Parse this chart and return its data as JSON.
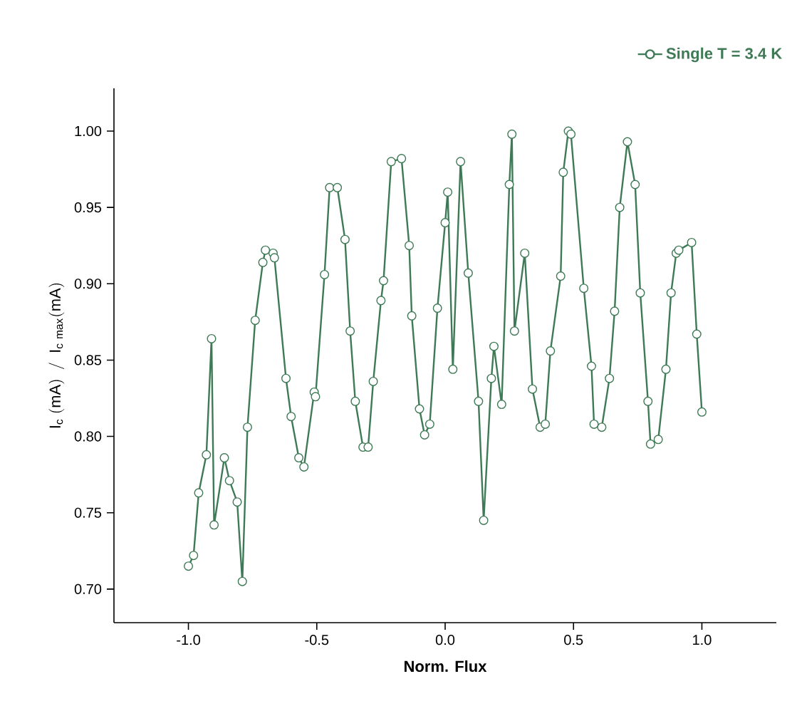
{
  "chart_data": {
    "type": "line",
    "xlabel": "Norm. Flux",
    "ylabel": "\\mathrm{I_{c}\\ (mA)\\ \\ /\\ \\ I_{c\\ max}(mA)}",
    "xlim": [
      -1.29,
      1.29
    ],
    "ylim": [
      0.678,
      1.028
    ],
    "xticks": [
      {
        "value": -1.0,
        "label": "-1.0"
      },
      {
        "value": -0.5,
        "label": "-0.5"
      },
      {
        "value": 0.0,
        "label": "0.0"
      },
      {
        "value": 0.5,
        "label": "0.5"
      },
      {
        "value": 1.0,
        "label": "1.0"
      }
    ],
    "yticks": [
      {
        "value": 0.7,
        "label": "0.70"
      },
      {
        "value": 0.75,
        "label": "0.75"
      },
      {
        "value": 0.8,
        "label": "0.80"
      },
      {
        "value": 0.85,
        "label": "0.85"
      },
      {
        "value": 0.9,
        "label": "0.90"
      },
      {
        "value": 0.95,
        "label": "0.95"
      },
      {
        "value": 1.0,
        "label": "1.00"
      }
    ],
    "legend": "top right",
    "marker": "circle",
    "grid": false,
    "series": [
      {
        "name": "Single T = 3.4 K",
        "color": "#3f7a56",
        "x": [
          -1.0,
          -0.98,
          -0.96,
          -0.93,
          -0.91,
          -0.9,
          -0.86,
          -0.84,
          -0.81,
          -0.79,
          -0.77,
          -0.74,
          -0.71,
          -0.7,
          -0.67,
          -0.665,
          -0.62,
          -0.6,
          -0.57,
          -0.55,
          -0.51,
          -0.505,
          -0.47,
          -0.45,
          -0.42,
          -0.39,
          -0.37,
          -0.35,
          -0.32,
          -0.3,
          -0.28,
          -0.25,
          -0.24,
          -0.21,
          -0.17,
          -0.14,
          -0.13,
          -0.1,
          -0.08,
          -0.06,
          -0.03,
          0.0,
          0.01,
          0.03,
          0.06,
          0.09,
          0.13,
          0.15,
          0.18,
          0.19,
          0.22,
          0.25,
          0.26,
          0.27,
          0.31,
          0.34,
          0.37,
          0.39,
          0.41,
          0.45,
          0.46,
          0.48,
          0.49,
          0.54,
          0.57,
          0.58,
          0.61,
          0.64,
          0.66,
          0.68,
          0.71,
          0.74,
          0.76,
          0.79,
          0.8,
          0.83,
          0.86,
          0.88,
          0.9,
          0.91,
          0.96,
          0.98,
          1.0
        ],
        "values": [
          0.715,
          0.722,
          0.763,
          0.788,
          0.864,
          0.742,
          0.786,
          0.771,
          0.757,
          0.705,
          0.806,
          0.876,
          0.914,
          0.922,
          0.92,
          0.917,
          0.838,
          0.813,
          0.786,
          0.78,
          0.829,
          0.826,
          0.906,
          0.963,
          0.963,
          0.929,
          0.869,
          0.823,
          0.793,
          0.793,
          0.836,
          0.889,
          0.902,
          0.98,
          0.982,
          0.925,
          0.879,
          0.818,
          0.801,
          0.808,
          0.884,
          0.94,
          0.96,
          0.844,
          0.98,
          0.907,
          0.823,
          0.745,
          0.838,
          0.859,
          0.821,
          0.965,
          0.998,
          0.869,
          0.92,
          0.831,
          0.806,
          0.808,
          0.856,
          0.905,
          0.973,
          1.0,
          0.998,
          0.897,
          0.846,
          0.808,
          0.806,
          0.838,
          0.882,
          0.95,
          0.993,
          0.965,
          0.894,
          0.823,
          0.795,
          0.798,
          0.844,
          0.894,
          0.92,
          0.922,
          0.927,
          0.867,
          0.816
        ]
      }
    ]
  }
}
